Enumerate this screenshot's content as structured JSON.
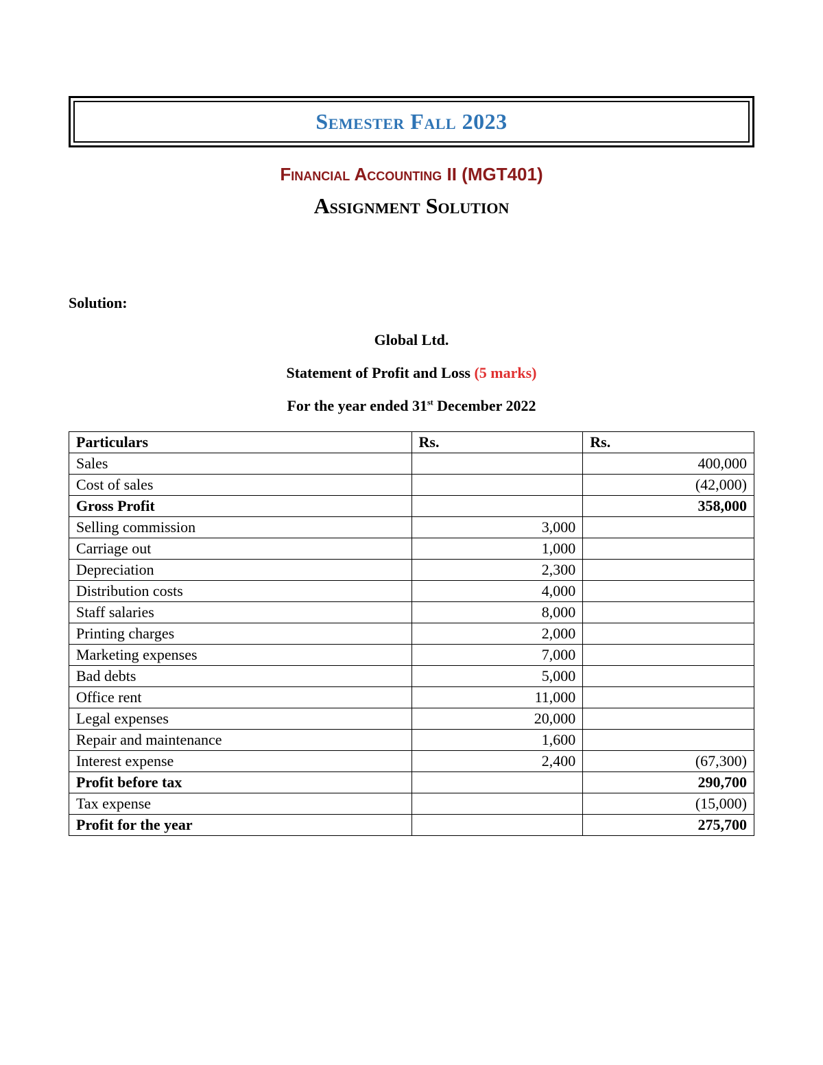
{
  "header": {
    "semester": "Semester Fall 2023",
    "course": "Financial Accounting II (MGT401)",
    "assignment": "Assignment Solution"
  },
  "body": {
    "solution_label": "Solution:",
    "company": "Global Ltd.",
    "statement": "Statement of Profit and Loss",
    "marks": "(5 marks)",
    "year_ended_pre": "For the year ended 31",
    "year_ended_sup": "st",
    "year_ended_post": " December 2022"
  },
  "table": {
    "headers": {
      "c1": "Particulars",
      "c2": "Rs.",
      "c3": "Rs."
    },
    "rows": [
      {
        "p": "Sales",
        "r1": "",
        "r2": "400,000",
        "bold": false
      },
      {
        "p": "Cost of sales",
        "r1": "",
        "r2": "(42,000)",
        "bold": false
      },
      {
        "p": "Gross Profit",
        "r1": "",
        "r2": "358,000",
        "bold": true
      },
      {
        "p": "Selling commission",
        "r1": "3,000",
        "r2": "",
        "bold": false
      },
      {
        "p": "Carriage out",
        "r1": "1,000",
        "r2": "",
        "bold": false
      },
      {
        "p": "Depreciation",
        "r1": "2,300",
        "r2": "",
        "bold": false
      },
      {
        "p": "Distribution costs",
        "r1": "4,000",
        "r2": "",
        "bold": false
      },
      {
        "p": "Staff salaries",
        "r1": "8,000",
        "r2": "",
        "bold": false
      },
      {
        "p": "Printing charges",
        "r1": "2,000",
        "r2": "",
        "bold": false
      },
      {
        "p": "Marketing expenses",
        "r1": "7,000",
        "r2": "",
        "bold": false
      },
      {
        "p": "Bad debts",
        "r1": "5,000",
        "r2": "",
        "bold": false
      },
      {
        "p": "Office rent",
        "r1": "11,000",
        "r2": "",
        "bold": false
      },
      {
        "p": "Legal expenses",
        "r1": "20,000",
        "r2": "",
        "bold": false
      },
      {
        "p": "Repair and maintenance",
        "r1": "1,600",
        "r2": "",
        "bold": false
      },
      {
        "p": "Interest expense",
        "r1": "2,400",
        "r2": "(67,300)",
        "bold": false
      },
      {
        "p": "Profit before tax",
        "r1": "",
        "r2": "290,700",
        "bold": true
      },
      {
        "p": "Tax expense",
        "r1": "",
        "r2": "(15,000)",
        "bold": false
      },
      {
        "p": "Profit for the year",
        "r1": "",
        "r2": "275,700",
        "bold": true
      }
    ]
  },
  "colors": {
    "semester": "#2e74b5",
    "course": "#8b1a1a",
    "marks": "#e03030",
    "border": "#000000",
    "text": "#000000",
    "background": "#ffffff"
  }
}
